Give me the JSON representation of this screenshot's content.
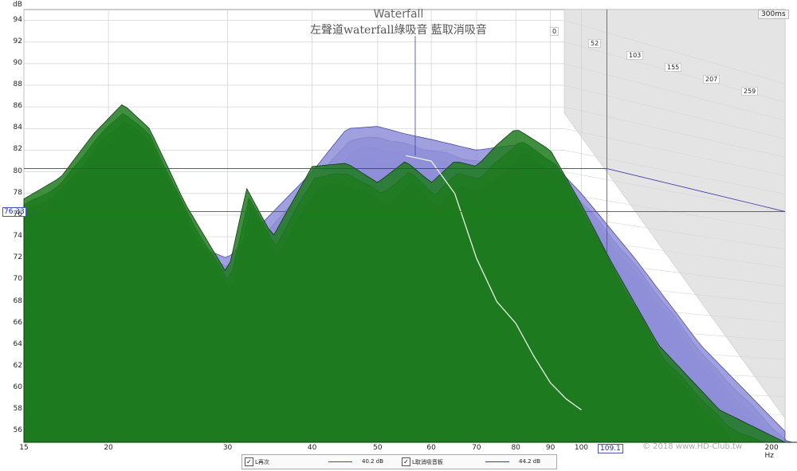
{
  "chart_data": {
    "type": "area",
    "title": "Waterfall",
    "subtitle": "左聲道waterfall綠吸音   藍取消吸音",
    "ylabel": "dB",
    "xlabel": "Hz",
    "ylim": [
      55,
      95
    ],
    "xlim": [
      15,
      200
    ],
    "x_scale": "log",
    "y_ticks": [
      94,
      92,
      90,
      88,
      86,
      84,
      82,
      80,
      78,
      76,
      74,
      72,
      70,
      68,
      66,
      64,
      62,
      60,
      58,
      56
    ],
    "x_ticks": [
      15,
      20,
      30,
      40,
      50,
      60,
      70,
      80,
      90,
      100,
      200
    ],
    "x_tick_labels": [
      "15",
      "20",
      "30",
      "40",
      "50",
      "60",
      "70",
      "80",
      "90",
      "100",
      "200 Hz"
    ],
    "time_ticks_ms": [
      "0",
      "52",
      "103",
      "155",
      "207",
      "259"
    ],
    "time_range_label": "300ms",
    "cursor": {
      "y_db": "76.33",
      "x_hz": "109.1"
    },
    "legend_placement": "bottom",
    "series": [
      {
        "name": "L再次",
        "color": "#1f7a1f",
        "level_label": "40.2 dB",
        "first_slice_db": [
          {
            "hz": 15,
            "db": 77.5
          },
          {
            "hz": 17,
            "db": 79.5
          },
          {
            "hz": 19,
            "db": 83.5
          },
          {
            "hz": 21,
            "db": 86.3
          },
          {
            "hz": 23,
            "db": 84
          },
          {
            "hz": 26,
            "db": 77
          },
          {
            "hz": 30,
            "db": 70.5
          },
          {
            "hz": 32,
            "db": 78.5
          },
          {
            "hz": 35,
            "db": 74
          },
          {
            "hz": 40,
            "db": 80.5
          },
          {
            "hz": 45,
            "db": 80.8
          },
          {
            "hz": 50,
            "db": 79
          },
          {
            "hz": 55,
            "db": 81
          },
          {
            "hz": 60,
            "db": 79
          },
          {
            "hz": 65,
            "db": 81
          },
          {
            "hz": 70,
            "db": 80.5
          },
          {
            "hz": 75,
            "db": 82.5
          },
          {
            "hz": 80,
            "db": 84
          },
          {
            "hz": 85,
            "db": 83
          },
          {
            "hz": 90,
            "db": 82
          },
          {
            "hz": 100,
            "db": 77
          },
          {
            "hz": 110,
            "db": 72
          },
          {
            "hz": 130,
            "db": 64
          },
          {
            "hz": 160,
            "db": 58
          },
          {
            "hz": 200,
            "db": 55
          }
        ]
      },
      {
        "name": "L取消吸音板",
        "color": "#3a3aa8",
        "level_label": "44.2 dB",
        "first_slice_db": [
          {
            "hz": 15,
            "db": 76
          },
          {
            "hz": 20,
            "db": 78
          },
          {
            "hz": 25,
            "db": 74
          },
          {
            "hz": 30,
            "db": 72
          },
          {
            "hz": 40,
            "db": 80
          },
          {
            "hz": 45,
            "db": 84
          },
          {
            "hz": 50,
            "db": 84.2
          },
          {
            "hz": 55,
            "db": 83.5
          },
          {
            "hz": 60,
            "db": 83
          },
          {
            "hz": 70,
            "db": 82
          },
          {
            "hz": 80,
            "db": 82.5
          },
          {
            "hz": 90,
            "db": 81
          },
          {
            "hz": 100,
            "db": 78
          },
          {
            "hz": 120,
            "db": 72
          },
          {
            "hz": 150,
            "db": 64
          },
          {
            "hz": 200,
            "db": 56
          }
        ]
      }
    ],
    "trace_db": [
      {
        "hz": 55,
        "db": 81.5
      },
      {
        "hz": 60,
        "db": 81
      },
      {
        "hz": 65,
        "db": 78
      },
      {
        "hz": 70,
        "db": 72
      },
      {
        "hz": 75,
        "db": 68
      },
      {
        "hz": 80,
        "db": 66
      },
      {
        "hz": 85,
        "db": 63
      },
      {
        "hz": 90,
        "db": 60.5
      },
      {
        "hz": 95,
        "db": 59
      },
      {
        "hz": 100,
        "db": 58
      }
    ]
  },
  "watermark": "© 2018 www.HD-Club.tw",
  "watermark_logo": "HD CLUB"
}
